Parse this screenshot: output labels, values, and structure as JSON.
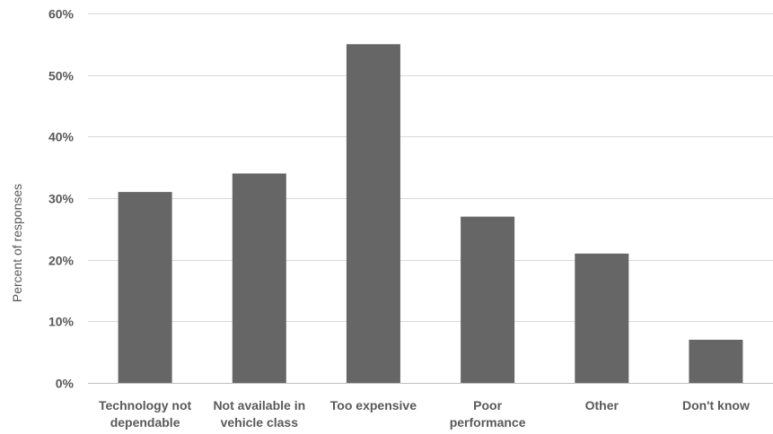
{
  "chart_data": {
    "type": "bar",
    "title": "",
    "xlabel": "",
    "ylabel": "Percent of responses",
    "ylim": [
      0,
      60
    ],
    "y_tick_step": 10,
    "y_tick_format": "percent",
    "grid": true,
    "legend": "none",
    "bar_color": "#666666",
    "categories": [
      [
        "Technology not",
        "dependable"
      ],
      [
        "Not available in",
        "vehicle class"
      ],
      [
        "Too expensive"
      ],
      [
        "Poor",
        "performance"
      ],
      [
        "Other"
      ],
      [
        "Don't know"
      ]
    ],
    "values": [
      31,
      34,
      55,
      27,
      21,
      7
    ]
  }
}
